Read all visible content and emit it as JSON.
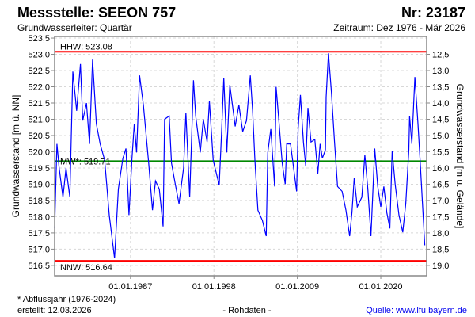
{
  "header": {
    "title": "Messstelle: SEEON 757",
    "number": "Nr: 23187",
    "aquifer": "Grundwasserleiter: Quartär",
    "period": "Zeitraum: Dez 1976 - Mär 2026"
  },
  "footer": {
    "note": "* Abflussjahr (1976-2024)",
    "created": "erstellt:  12.03.2026",
    "datatype": "- Rohdaten -",
    "source": "Quelle: www.lfu.bayern.de"
  },
  "chart_data": {
    "type": "line",
    "ylabel": "Grundwasserstand [m ü. NN]",
    "ylabel_right": "Grundwasserstand [m u. Gelände]",
    "xlim": [
      1977.0,
      2026.05
    ],
    "ylim": [
      516.18,
      523.55
    ],
    "yticks": [
      "516,5",
      "517,0",
      "517,5",
      "518,0",
      "518,5",
      "519,0",
      "519,5",
      "520,0",
      "520,5",
      "521,0",
      "521,5",
      "522,0",
      "522,5",
      "523,0",
      "523,5"
    ],
    "ytick_values": [
      516.5,
      517,
      517.5,
      518,
      518.5,
      519,
      519.5,
      520,
      520.5,
      521,
      521.5,
      522,
      522.5,
      523,
      523.5
    ],
    "yticks_right": [
      "19,0",
      "18,5",
      "18,0",
      "17,5",
      "17,0",
      "16,5",
      "16,0",
      "15,5",
      "15,0",
      "14,5",
      "14,0",
      "13,5",
      "13,0",
      "12,5"
    ],
    "ytick_right_values": [
      516.5,
      517,
      517.5,
      518,
      518.5,
      519,
      519.5,
      520,
      520.5,
      521,
      521.5,
      522,
      522.5,
      523
    ],
    "xticks": [
      "01.01.1987",
      "01.01.1998",
      "01.01.2009",
      "01.01.2020"
    ],
    "xtick_values": [
      1987,
      1998,
      2009,
      2020
    ],
    "grid": true,
    "reference_lines": [
      {
        "name": "hhw",
        "label": "HHW: 523.08",
        "value": 523.08,
        "color": "#ff0000"
      },
      {
        "name": "mw",
        "label": "MW*: 519.71",
        "value": 519.71,
        "color": "#008800"
      },
      {
        "name": "nnw",
        "label": "NNW: 516.64",
        "value": 516.64,
        "color": "#ff0000"
      }
    ],
    "series": [
      {
        "name": "Grundwasserstand",
        "color": "#0000ff",
        "x": [
          1977.0,
          1977.3,
          1977.6,
          1978.1,
          1978.5,
          1979.0,
          1979.4,
          1979.9,
          1980.4,
          1980.7,
          1981.2,
          1981.6,
          1982.0,
          1982.5,
          1983.0,
          1983.6,
          1984.2,
          1984.9,
          1985.4,
          1986.0,
          1986.4,
          1986.8,
          1987.2,
          1987.5,
          1987.8,
          1988.2,
          1988.7,
          1989.4,
          1989.9,
          1990.3,
          1990.8,
          1991.3,
          1991.5,
          1992.1,
          1992.4,
          1992.9,
          1993.4,
          1994.0,
          1994.3,
          1994.8,
          1995.3,
          1995.6,
          1996.2,
          1996.6,
          1997.1,
          1997.4,
          1997.9,
          1998.7,
          1999.0,
          1999.3,
          1999.7,
          2000.1,
          2000.8,
          2001.3,
          2001.8,
          2002.3,
          2002.8,
          2003.1,
          2003.4,
          2003.8,
          2004.4,
          2004.9,
          2005.1,
          2005.5,
          2006.0,
          2006.2,
          2006.6,
          2007.0,
          2007.4,
          2007.6,
          2008.1,
          2008.9,
          2009.1,
          2009.4,
          2009.8,
          2010.1,
          2010.4,
          2010.8,
          2011.3,
          2011.7,
          2012.0,
          2012.3,
          2012.7,
          2012.8,
          2013.1,
          2013.5,
          2013.9,
          2014.3,
          2014.9,
          2015.4,
          2015.9,
          2016.2,
          2016.5,
          2016.9,
          2017.5,
          2017.9,
          2018.3,
          2018.7,
          2019.2,
          2019.6,
          2020.0,
          2020.4,
          2020.8,
          2021.2,
          2021.5,
          2021.9,
          2022.4,
          2022.9,
          2023.3,
          2023.7,
          2023.8,
          2024.1,
          2024.5,
          2024.9,
          2025.2,
          2025.5,
          2025.8
        ],
        "y": [
          517.64,
          520.24,
          519.5,
          518.6,
          519.5,
          518.6,
          522.47,
          521.26,
          522.7,
          520.96,
          521.5,
          520.24,
          522.84,
          520.86,
          520.24,
          519.74,
          518.05,
          516.72,
          518.85,
          519.8,
          520.1,
          518.05,
          519.8,
          520.86,
          519.98,
          522.35,
          521.44,
          519.65,
          518.2,
          519.1,
          518.85,
          517.7,
          521.0,
          521.1,
          519.65,
          519.0,
          518.4,
          519.5,
          521.2,
          518.6,
          522.2,
          521.1,
          519.98,
          521.0,
          520.3,
          521.56,
          519.74,
          518.97,
          520.55,
          522.28,
          519.98,
          522.06,
          520.78,
          521.44,
          520.62,
          520.96,
          522.35,
          521.26,
          519.74,
          518.2,
          517.88,
          517.4,
          519.98,
          520.7,
          518.93,
          522.0,
          520.86,
          519.65,
          519.0,
          520.24,
          520.24,
          518.78,
          520.7,
          521.75,
          520.3,
          519.57,
          521.35,
          520.3,
          520.38,
          519.33,
          520.24,
          519.8,
          520.06,
          521.68,
          523.03,
          521.82,
          520.3,
          518.93,
          518.78,
          518.2,
          517.4,
          518.12,
          519.2,
          518.3,
          518.6,
          519.9,
          518.85,
          517.4,
          520.1,
          518.93,
          518.3,
          518.93,
          518.12,
          517.64,
          520.02,
          519.0,
          518.05,
          517.52,
          518.4,
          520.06,
          521.1,
          520.24,
          522.3,
          520.86,
          519.65,
          518.4,
          517.12
        ]
      }
    ]
  }
}
